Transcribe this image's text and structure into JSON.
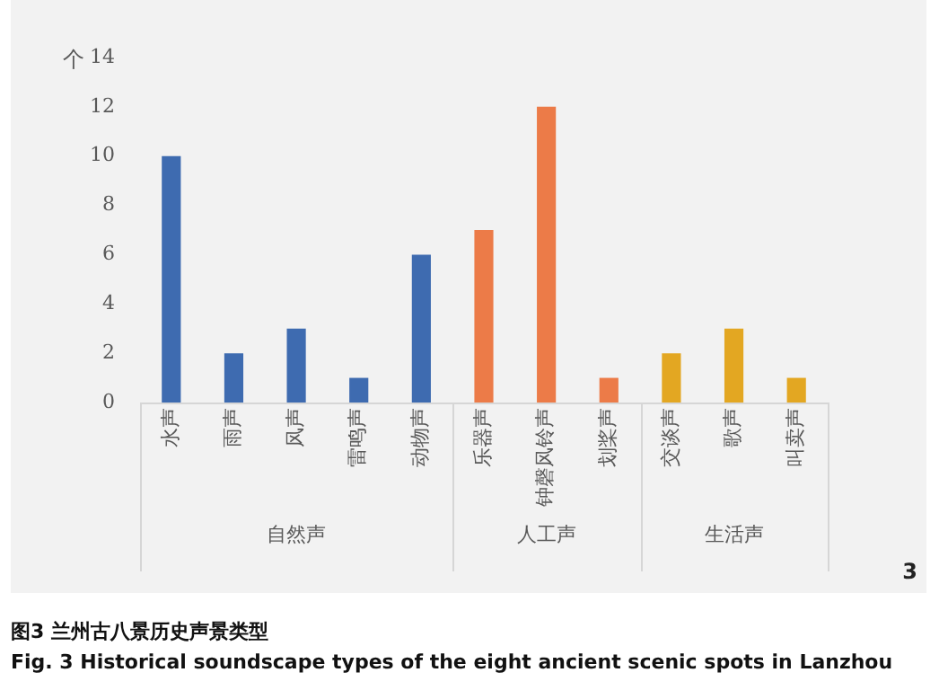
{
  "chart_data": {
    "type": "bar",
    "ylabel": "个",
    "categories": [
      "水声",
      "雨声",
      "风声",
      "雷鸣声",
      "动物声",
      "乐器声",
      "钟磬风铃声",
      "划桨声",
      "交谈声",
      "歌声",
      "叫卖声"
    ],
    "values": [
      10,
      2,
      3,
      1,
      6,
      7,
      12,
      1,
      2,
      3,
      1
    ],
    "colors": [
      "#3e6bb0",
      "#3e6bb0",
      "#3e6bb0",
      "#3e6bb0",
      "#3e6bb0",
      "#ec7b48",
      "#ec7b48",
      "#ec7b48",
      "#e3a722",
      "#e3a722",
      "#e3a722"
    ],
    "ylim": [
      0,
      14
    ],
    "yticks": [
      0,
      2,
      4,
      6,
      8,
      10,
      12,
      14
    ],
    "grid": false,
    "legend": false,
    "annotations": [
      "自然声",
      "人工声",
      "生活声",
      "3",
      "图3  兰州古八景历史声景类型",
      "Fig. 3   Historical soundscape types of the eight ancient scenic spots in Lanzhou"
    ]
  }
}
